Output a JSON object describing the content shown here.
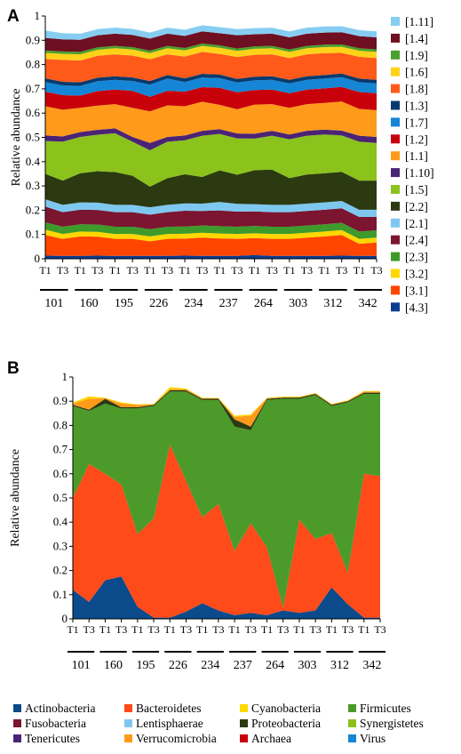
{
  "chart_data": [
    {
      "panel": "A",
      "type": "area",
      "stacked": true,
      "ylabel": "Relative abundance",
      "ylim": [
        0,
        1
      ],
      "yticks": [
        "0",
        "0.1",
        "0.2",
        "0.3",
        "0.4",
        "0.5",
        "0.6",
        "0.7",
        "0.8",
        "0.9",
        "1"
      ],
      "x": [
        "T1",
        "T3",
        "T1",
        "T3",
        "T1",
        "T3",
        "T1",
        "T3",
        "T1",
        "T3",
        "T1",
        "T3",
        "T1",
        "T3",
        "T1",
        "T3",
        "T1",
        "T3",
        "T1",
        "T3"
      ],
      "groups": [
        "101",
        "160",
        "195",
        "226",
        "234",
        "237",
        "264",
        "303",
        "312",
        "342"
      ],
      "legend_position": "right",
      "series": [
        {
          "name": "[4.3]",
          "color": "#0b3d91",
          "values": [
            0.013,
            0.012,
            0.012,
            0.013,
            0.012,
            0.012,
            0.012,
            0.012,
            0.013,
            0.012,
            0.012,
            0.012,
            0.015,
            0.012,
            0.012,
            0.012,
            0.012,
            0.013,
            0.012,
            0.012
          ]
        },
        {
          "name": "[3.1]",
          "color": "#ff4500",
          "values": [
            0.085,
            0.07,
            0.08,
            0.078,
            0.07,
            0.07,
            0.06,
            0.07,
            0.07,
            0.075,
            0.072,
            0.07,
            0.07,
            0.07,
            0.07,
            0.075,
            0.08,
            0.085,
            0.05,
            0.055
          ]
        },
        {
          "name": "[3.2]",
          "color": "#ffd700",
          "values": [
            0.022,
            0.02,
            0.02,
            0.02,
            0.02,
            0.02,
            0.02,
            0.02,
            0.02,
            0.02,
            0.02,
            0.02,
            0.02,
            0.02,
            0.02,
            0.02,
            0.02,
            0.02,
            0.02,
            0.02
          ]
        },
        {
          "name": "[2.3]",
          "color": "#3e9a2a",
          "values": [
            0.03,
            0.03,
            0.03,
            0.03,
            0.03,
            0.03,
            0.03,
            0.03,
            0.03,
            0.03,
            0.03,
            0.03,
            0.03,
            0.03,
            0.03,
            0.03,
            0.03,
            0.03,
            0.03,
            0.03
          ]
        },
        {
          "name": "[2.4]",
          "color": "#7b1530",
          "values": [
            0.065,
            0.06,
            0.06,
            0.06,
            0.06,
            0.06,
            0.06,
            0.06,
            0.065,
            0.06,
            0.065,
            0.062,
            0.06,
            0.06,
            0.06,
            0.06,
            0.06,
            0.06,
            0.06,
            0.055
          ]
        },
        {
          "name": "[2.1]",
          "color": "#7ec8f0",
          "values": [
            0.03,
            0.03,
            0.03,
            0.03,
            0.03,
            0.03,
            0.03,
            0.03,
            0.03,
            0.03,
            0.035,
            0.032,
            0.03,
            0.03,
            0.03,
            0.03,
            0.03,
            0.03,
            0.03,
            0.03
          ]
        },
        {
          "name": "[2.2]",
          "color": "#2b3a10",
          "values": [
            0.105,
            0.1,
            0.12,
            0.13,
            0.135,
            0.12,
            0.085,
            0.11,
            0.12,
            0.11,
            0.13,
            0.12,
            0.14,
            0.145,
            0.11,
            0.12,
            0.12,
            0.12,
            0.12,
            0.12
          ]
        },
        {
          "name": "[1.5]",
          "color": "#8bc21c",
          "values": [
            0.135,
            0.16,
            0.15,
            0.15,
            0.16,
            0.14,
            0.15,
            0.15,
            0.14,
            0.17,
            0.15,
            0.15,
            0.13,
            0.14,
            0.16,
            0.16,
            0.16,
            0.15,
            0.16,
            0.155
          ]
        },
        {
          "name": "[1.10]",
          "color": "#4b2375",
          "values": [
            0.023,
            0.022,
            0.02,
            0.02,
            0.02,
            0.02,
            0.03,
            0.02,
            0.02,
            0.02,
            0.02,
            0.02,
            0.02,
            0.02,
            0.02,
            0.02,
            0.02,
            0.02,
            0.025,
            0.025
          ]
        },
        {
          "name": "[1.1]",
          "color": "#ff9a1a",
          "values": [
            0.12,
            0.11,
            0.1,
            0.1,
            0.1,
            0.12,
            0.13,
            0.13,
            0.12,
            0.12,
            0.1,
            0.1,
            0.12,
            0.11,
            0.11,
            0.11,
            0.11,
            0.12,
            0.11,
            0.11
          ]
        },
        {
          "name": "[1.2]",
          "color": "#c8000a",
          "values": [
            0.06,
            0.06,
            0.05,
            0.06,
            0.06,
            0.07,
            0.06,
            0.06,
            0.06,
            0.06,
            0.07,
            0.07,
            0.06,
            0.06,
            0.06,
            0.06,
            0.06,
            0.06,
            0.07,
            0.07
          ]
        },
        {
          "name": "[1.7]",
          "color": "#1586d6",
          "values": [
            0.04,
            0.04,
            0.04,
            0.04,
            0.04,
            0.04,
            0.05,
            0.05,
            0.04,
            0.04,
            0.04,
            0.04,
            0.04,
            0.04,
            0.04,
            0.04,
            0.04,
            0.04,
            0.04,
            0.04
          ]
        },
        {
          "name": "[1.3]",
          "color": "#083a6e",
          "values": [
            0.015,
            0.015,
            0.015,
            0.015,
            0.015,
            0.015,
            0.015,
            0.015,
            0.015,
            0.015,
            0.015,
            0.015,
            0.015,
            0.015,
            0.015,
            0.015,
            0.015,
            0.015,
            0.015,
            0.015
          ]
        },
        {
          "name": "[1.8]",
          "color": "#ff5a1a",
          "values": [
            0.08,
            0.09,
            0.09,
            0.09,
            0.09,
            0.09,
            0.09,
            0.085,
            0.09,
            0.09,
            0.085,
            0.09,
            0.09,
            0.09,
            0.09,
            0.09,
            0.09,
            0.085,
            0.09,
            0.09
          ]
        },
        {
          "name": "[1.6]",
          "color": "#ffd21a",
          "values": [
            0.025,
            0.025,
            0.025,
            0.025,
            0.025,
            0.025,
            0.025,
            0.025,
            0.025,
            0.025,
            0.025,
            0.025,
            0.025,
            0.025,
            0.025,
            0.025,
            0.025,
            0.025,
            0.025,
            0.025
          ]
        },
        {
          "name": "[1.9]",
          "color": "#4aa02c",
          "values": [
            0.01,
            0.01,
            0.01,
            0.01,
            0.01,
            0.01,
            0.01,
            0.01,
            0.01,
            0.01,
            0.01,
            0.01,
            0.01,
            0.01,
            0.01,
            0.01,
            0.01,
            0.01,
            0.01,
            0.01
          ]
        },
        {
          "name": "[1.4]",
          "color": "#6e0f22",
          "values": [
            0.052,
            0.05,
            0.05,
            0.05,
            0.05,
            0.05,
            0.05,
            0.05,
            0.05,
            0.05,
            0.05,
            0.055,
            0.05,
            0.05,
            0.05,
            0.05,
            0.05,
            0.05,
            0.05,
            0.05
          ]
        },
        {
          "name": "[1.11]",
          "color": "#87cdf2",
          "values": [
            0.03,
            0.025,
            0.025,
            0.025,
            0.025,
            0.025,
            0.025,
            0.025,
            0.025,
            0.025,
            0.025,
            0.025,
            0.025,
            0.025,
            0.025,
            0.025,
            0.025,
            0.025,
            0.025,
            0.025
          ]
        }
      ]
    },
    {
      "panel": "B",
      "type": "area",
      "stacked": true,
      "ylabel": "Relative abundance",
      "ylim": [
        0,
        1
      ],
      "yticks": [
        "0",
        "0.1",
        "0.2",
        "0.3",
        "0.4",
        "0.5",
        "0.6",
        "0.7",
        "0.8",
        "0.9",
        "1"
      ],
      "x": [
        "T1",
        "T3",
        "T1",
        "T3",
        "T1",
        "T3",
        "T1",
        "T3",
        "T1",
        "T3",
        "T1",
        "T3",
        "T1",
        "T3",
        "T1",
        "T3",
        "T1",
        "T3",
        "T1",
        "T3"
      ],
      "groups": [
        "101",
        "160",
        "195",
        "226",
        "234",
        "237",
        "264",
        "303",
        "312",
        "342"
      ],
      "legend_position": "bottom",
      "series": [
        {
          "name": "Actinobacteria",
          "color": "#0b4a8b",
          "values": [
            0.12,
            0.07,
            0.16,
            0.175,
            0.05,
            0.005,
            0.005,
            0.03,
            0.065,
            0.035,
            0.015,
            0.025,
            0.015,
            0.035,
            0.025,
            0.035,
            0.13,
            0.06,
            0.005,
            0.005
          ]
        },
        {
          "name": "Bacteroidetes",
          "color": "#ff4a1a",
          "values": [
            0.38,
            0.57,
            0.44,
            0.38,
            0.3,
            0.41,
            0.715,
            0.54,
            0.355,
            0.44,
            0.265,
            0.37,
            0.28,
            0.01,
            0.385,
            0.295,
            0.225,
            0.13,
            0.595,
            0.585
          ]
        },
        {
          "name": "Firmicutes",
          "color": "#4c9a2a",
          "values": [
            0.38,
            0.22,
            0.29,
            0.315,
            0.52,
            0.465,
            0.22,
            0.37,
            0.485,
            0.43,
            0.515,
            0.385,
            0.61,
            0.865,
            0.5,
            0.595,
            0.525,
            0.705,
            0.33,
            0.34
          ]
        },
        {
          "name": "Proteobacteria",
          "color": "#2b3a10",
          "values": [
            0.005,
            0.005,
            0.02,
            0.005,
            0.005,
            0.005,
            0.005,
            0.005,
            0.005,
            0.005,
            0.03,
            0.015,
            0.005,
            0.005,
            0.005,
            0.005,
            0.005,
            0.005,
            0.005,
            0.005
          ]
        },
        {
          "name": "Verrucomicrobia",
          "color": "#ff9a1a",
          "values": [
            0.005,
            0.045,
            0.002,
            0.015,
            0.01,
            0.002,
            0.005,
            0.005,
            0.002,
            0.002,
            0.01,
            0.045,
            0.002,
            0.002,
            0.002,
            0.002,
            0.002,
            0.002,
            0.005,
            0.005
          ]
        },
        {
          "name": "Cyanobacteria",
          "color": "#ffd700",
          "values": [
            0.005,
            0.01,
            0.002,
            0.005,
            0.002,
            0.002,
            0.008,
            0.002,
            0.002,
            0.002,
            0.005,
            0.005,
            0.002,
            0.002,
            0.002,
            0.002,
            0.002,
            0.002,
            0.002,
            0.002
          ]
        },
        {
          "name": "Fusobacteria",
          "color": "#7b1530",
          "values": [
            0,
            0,
            0,
            0,
            0,
            0,
            0,
            0,
            0,
            0,
            0,
            0,
            0,
            0,
            0,
            0,
            0,
            0,
            0,
            0
          ]
        },
        {
          "name": "Lentisphaerae",
          "color": "#7ec8f0",
          "values": [
            0,
            0,
            0,
            0,
            0,
            0,
            0,
            0,
            0,
            0,
            0,
            0,
            0,
            0,
            0,
            0,
            0,
            0,
            0,
            0
          ]
        },
        {
          "name": "Synergistetes",
          "color": "#8bc21c",
          "values": [
            0,
            0,
            0,
            0,
            0,
            0,
            0,
            0,
            0,
            0,
            0,
            0,
            0,
            0,
            0,
            0,
            0,
            0,
            0,
            0
          ]
        },
        {
          "name": "Tenericutes",
          "color": "#4b2375",
          "values": [
            0,
            0,
            0,
            0,
            0,
            0,
            0,
            0,
            0,
            0,
            0,
            0,
            0,
            0,
            0,
            0,
            0,
            0,
            0,
            0
          ]
        },
        {
          "name": "Archaea",
          "color": "#c8000a",
          "values": [
            0,
            0,
            0,
            0,
            0,
            0,
            0,
            0,
            0,
            0,
            0,
            0,
            0,
            0,
            0,
            0,
            0,
            0,
            0,
            0
          ]
        },
        {
          "name": "Virus",
          "color": "#1586d6",
          "values": [
            0,
            0,
            0,
            0,
            0,
            0,
            0,
            0,
            0,
            0,
            0,
            0,
            0,
            0,
            0,
            0,
            0,
            0,
            0,
            0
          ]
        }
      ]
    }
  ]
}
